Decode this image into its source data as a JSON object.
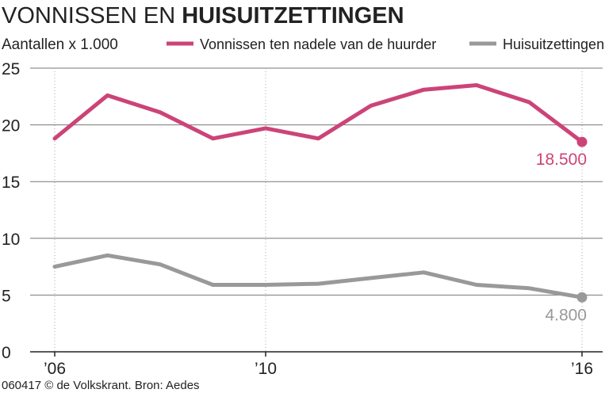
{
  "chart_data": {
    "type": "line",
    "title_part1": "VONNISSEN EN ",
    "title_part2": "HUISUITZETTINGEN",
    "ylabel": "Aantallen x 1.000",
    "ylim": [
      0,
      25
    ],
    "yticks": [
      0,
      5,
      10,
      15,
      20,
      25
    ],
    "x": [
      2006,
      2007,
      2008,
      2009,
      2010,
      2011,
      2012,
      2013,
      2014,
      2015,
      2016
    ],
    "xticks": [
      2006,
      2010,
      2016
    ],
    "xtick_labels": [
      "’06",
      "’10",
      "’16"
    ],
    "grid": "vertical dotted lines at labelled years",
    "legend_position": "top",
    "series": [
      {
        "name": "Vonnissen ten nadele van de huurder",
        "color": "#cc4477",
        "values": [
          18.8,
          22.6,
          21.1,
          18.8,
          19.7,
          18.8,
          21.7,
          23.1,
          23.5,
          22.0,
          18.5
        ],
        "end_label": "18.500"
      },
      {
        "name": "Huisuitzettingen",
        "color": "#999999",
        "values": [
          7.5,
          8.5,
          7.7,
          5.9,
          5.9,
          6.0,
          6.5,
          7.0,
          5.9,
          5.6,
          4.8
        ],
        "end_label": "4.800"
      }
    ]
  },
  "footer": {
    "credit": "060417 © de Volkskrant. Bron: Aedes"
  }
}
